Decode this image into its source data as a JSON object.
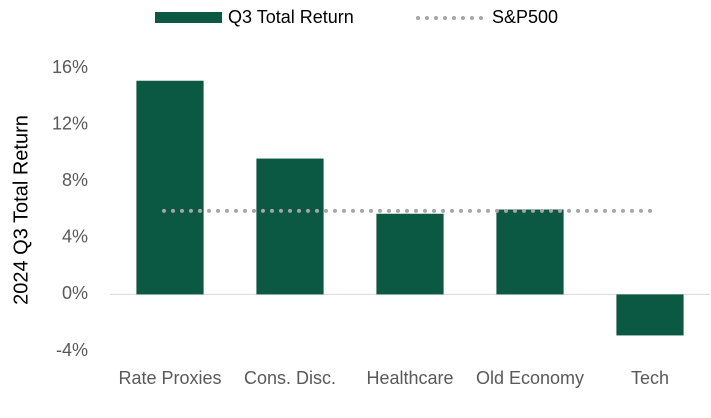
{
  "chart_data": {
    "type": "bar",
    "y_label": "2024  Q3 Total Return",
    "categories": [
      "Rate Proxies",
      "Cons. Disc.",
      "Healthcare",
      "Old Economy",
      "Tech"
    ],
    "series": [
      {
        "name": "Q3 Total Return",
        "color": "#0b5843",
        "values": [
          15.1,
          9.6,
          5.7,
          6.0,
          -2.9
        ]
      }
    ],
    "reference_line": {
      "name": "S&P500",
      "value": 5.9,
      "color": "#a6a6a6"
    },
    "ylim": [
      -4,
      16
    ],
    "yticks": [
      {
        "value": -4,
        "label": "-4%"
      },
      {
        "value": 0,
        "label": "0%"
      },
      {
        "value": 4,
        "label": "4%"
      },
      {
        "value": 8,
        "label": "8%"
      },
      {
        "value": 12,
        "label": "12%"
      },
      {
        "value": 16,
        "label": "16%"
      }
    ],
    "legend": "top"
  }
}
